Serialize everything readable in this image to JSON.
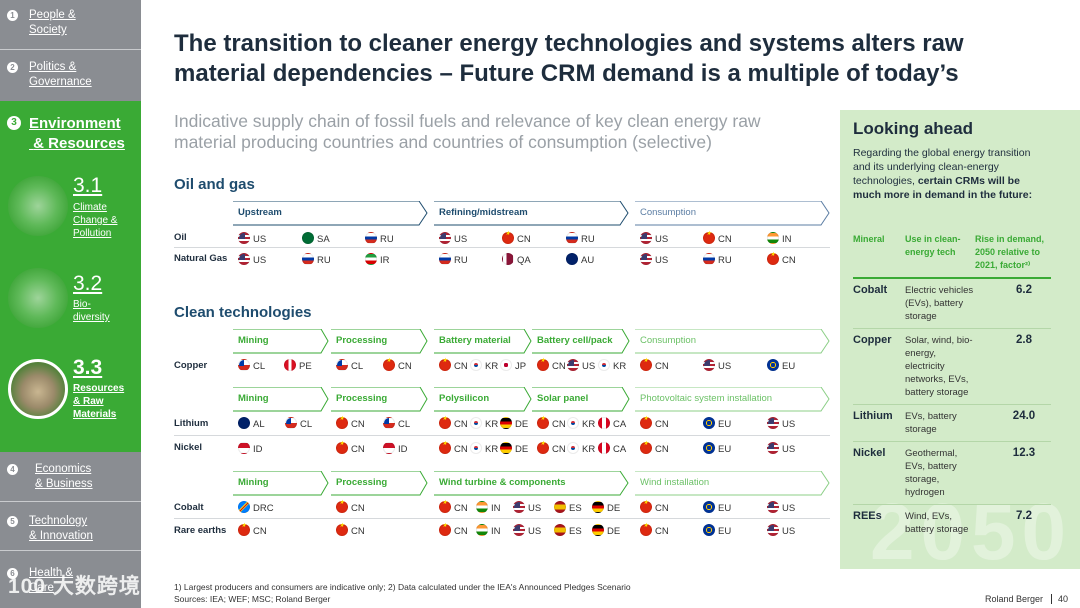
{
  "sidebar": {
    "items": [
      {
        "num": "1",
        "label_line1": "People &",
        "label_line2": "Society"
      },
      {
        "num": "2",
        "label_line1": "Politics &",
        "label_line2": "Governance"
      },
      {
        "num": "3",
        "label_line1": "Environment",
        "label_line2": "& Resources"
      },
      {
        "num": "4",
        "label_line1": "Economics",
        "label_line2": "& Business"
      },
      {
        "num": "5",
        "label_line1": "Technology",
        "label_line2": "& Innovation"
      },
      {
        "num": "6",
        "label_line1": "Health &",
        "label_line2": "Care"
      }
    ],
    "subitems": [
      {
        "num": "3.1",
        "text": [
          "Climate",
          "Change &",
          "Pollution"
        ]
      },
      {
        "num": "3.2",
        "text": [
          "Bio-",
          "diversity"
        ]
      },
      {
        "num": "3.3",
        "text": [
          "Resources",
          "& Raw",
          "Materials"
        ]
      }
    ],
    "watermark": "100 大数跨境"
  },
  "headline": {
    "line1": "The transition to cleaner energy technologies and systems alters raw",
    "line2": "material dependencies – Future CRM demand is a multiple of today’s"
  },
  "subheadline": {
    "line1": "Indicative supply chain of fossil fuels and relevance of key clean energy raw",
    "line2": "material producing countries and countries of consumption (selective)"
  },
  "oil_gas": {
    "title": "Oil and gas",
    "stages": [
      "Upstream",
      "Refining/midstream",
      "Consumption"
    ],
    "rows": [
      {
        "label": "Oil",
        "upstream": [
          "US",
          "SA",
          "RU"
        ],
        "refining": [
          "US",
          "CN",
          "RU"
        ],
        "consumption": [
          "US",
          "CN",
          "IN"
        ]
      },
      {
        "label": "Natural Gas",
        "upstream": [
          "US",
          "RU",
          "IR"
        ],
        "refining": [
          "RU",
          "QA",
          "AU"
        ],
        "consumption": [
          "US",
          "RU",
          "CN"
        ]
      }
    ]
  },
  "clean_tech": {
    "title": "Clean technologies",
    "copper": {
      "stages": [
        "Mining",
        "Processing",
        "Battery material",
        "Battery cell/pack",
        "Consumption"
      ],
      "label": "Copper",
      "mining": [
        "CL",
        "PE"
      ],
      "processing": [
        "CL",
        "CN"
      ],
      "battery_material": [
        "CN",
        "KR",
        "JP"
      ],
      "battery_cell": [
        "CN",
        "US",
        "KR"
      ],
      "consumption": [
        "CN",
        "US",
        "EU"
      ]
    },
    "solar": {
      "stages": [
        "Mining",
        "Processing",
        "Polysilicon",
        "Solar panel",
        "Photovoltaic system installation"
      ],
      "rows": [
        {
          "label": "Lithium",
          "mining": [
            "AL",
            "CL"
          ],
          "processing": [
            "CN",
            "CL"
          ],
          "polysilicon": [
            "CN",
            "KR",
            "DE"
          ],
          "panel": [
            "CN",
            "KR",
            "CA"
          ],
          "consumption": [
            "CN",
            "EU",
            "US"
          ]
        },
        {
          "label": "Nickel",
          "mining": [
            "ID"
          ],
          "processing": [
            "CN",
            "ID"
          ],
          "polysilicon": [
            "CN",
            "KR",
            "DE"
          ],
          "panel": [
            "CN",
            "KR",
            "CA"
          ],
          "consumption": [
            "CN",
            "EU",
            "US"
          ]
        }
      ]
    },
    "wind": {
      "stages": [
        "Mining",
        "Processing",
        "Wind turbine & components",
        "Wind installation"
      ],
      "rows": [
        {
          "label": "Cobalt",
          "mining": [
            "DRC"
          ],
          "processing": [
            "CN"
          ],
          "turbine": [
            "CN",
            "IN",
            "US",
            "ES",
            "DE"
          ],
          "consumption": [
            "CN",
            "EU",
            "US"
          ]
        },
        {
          "label": "Rare earths",
          "mining": [
            "CN"
          ],
          "processing": [
            "CN"
          ],
          "turbine": [
            "CN",
            "IN",
            "US",
            "ES",
            "DE"
          ],
          "consumption": [
            "CN",
            "EU",
            "US"
          ]
        }
      ]
    }
  },
  "panel": {
    "title": "Looking ahead",
    "intro_plain": "Regarding the global energy transition and its underlying clean-energy technologies,",
    "intro_bold": "certain CRMs will be much more in demand in the future:",
    "headers": {
      "mineral": "Mineral",
      "use": "Use in clean-energy tech",
      "rise": "Rise in demand, 2050 relative to 2021, factor²⁾"
    },
    "rows": [
      {
        "mineral": "Cobalt",
        "use": "Electric vehicles (EVs), battery storage",
        "factor": "6.2"
      },
      {
        "mineral": "Copper",
        "use": "Solar, wind, bio-energy, electricity networks, EVs, battery storage",
        "factor": "2.8"
      },
      {
        "mineral": "Lithium",
        "use": "EVs, battery storage",
        "factor": "24.0"
      },
      {
        "mineral": "Nickel",
        "use": "Geothermal, EVs, battery storage, hydrogen",
        "factor": "12.3"
      },
      {
        "mineral": "REEs",
        "use": "Wind, EVs, battery storage",
        "factor": "7.2"
      }
    ],
    "year_watermark": "2050"
  },
  "footer": {
    "note": "1) Largest producers and consumers are indicative only;  2) Data calculated under the IEA's Announced Pledges Scenario",
    "sources": "Sources: IEA; WEF; MSC; Roland Berger",
    "brand": "Roland Berger",
    "page": "40"
  },
  "colors": {
    "sidebar": "#8a8d92",
    "green": "#3aaa35",
    "navy": "#1e4c6e",
    "panel": "#d3ebc9"
  }
}
